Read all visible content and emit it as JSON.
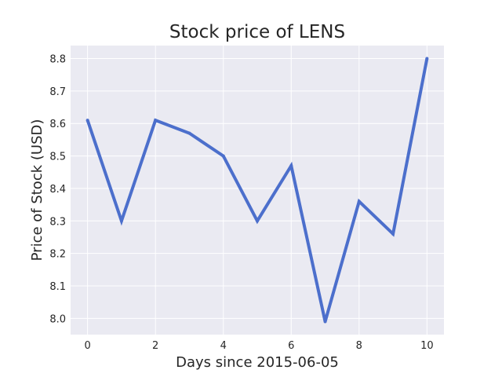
{
  "chart_data": {
    "type": "line",
    "title": "Stock price of LENS",
    "xlabel": "Days since 2015-06-05",
    "ylabel": "Price of Stock (USD)",
    "x": [
      0,
      1,
      2,
      3,
      4,
      5,
      6,
      7,
      8,
      9,
      10
    ],
    "series": [
      {
        "values": [
          8.61,
          8.3,
          8.61,
          8.57,
          8.5,
          8.3,
          8.47,
          7.99,
          8.36,
          8.26,
          8.8
        ]
      }
    ],
    "xlim": [
      -0.5,
      10.5
    ],
    "ylim": [
      7.95,
      8.84
    ],
    "xticks": [
      0,
      2,
      4,
      6,
      8,
      10
    ],
    "xtick_labels": [
      "0",
      "2",
      "4",
      "6",
      "8",
      "10"
    ],
    "yticks": [
      8.0,
      8.1,
      8.2,
      8.3,
      8.4,
      8.5,
      8.6,
      8.7,
      8.8
    ],
    "ytick_labels": [
      "8.0",
      "8.1",
      "8.2",
      "8.3",
      "8.4",
      "8.5",
      "8.6",
      "8.7",
      "8.8"
    ],
    "grid": true,
    "colors": {
      "line": "#4c6fcc",
      "plot_bg": "#eaeaf2",
      "grid": "#ffffff"
    }
  }
}
